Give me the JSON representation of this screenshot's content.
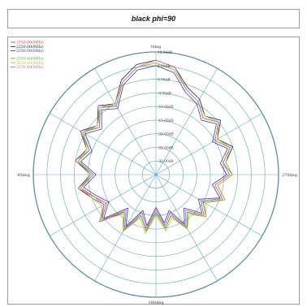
{
  "window": {
    "title": "black phi=90"
  },
  "chart_data": {
    "type": "polar-line",
    "title": "black phi=90",
    "angle_labels": {
      "top": "0deg",
      "left": "90deg",
      "right": "270deg",
      "bottom": "180deg"
    },
    "radial_ticks": [
      "10.00dB",
      "5.00dB",
      "0.00dB",
      "-5.00dB",
      "-10.00dB",
      "-15.00dB",
      "-20.00dB",
      "-25.00dB",
      "-30.00dB"
    ],
    "rlim": [
      -35,
      10
    ],
    "grid": true,
    "legend_position": "top-left",
    "angles_deg": [
      0,
      10,
      20,
      30,
      40,
      50,
      60,
      70,
      80,
      90,
      100,
      110,
      120,
      130,
      140,
      150,
      160,
      170,
      180,
      190,
      200,
      210,
      220,
      230,
      240,
      250,
      260,
      270,
      280,
      290,
      300,
      310,
      320,
      330,
      340,
      350
    ],
    "series": [
      {
        "name": "2150.00(MHz)",
        "color": "#e04040",
        "values": [
          6,
          5,
          1,
          -6,
          -3,
          -8,
          -4,
          -9,
          -6,
          -12,
          -7,
          -11,
          -14,
          -9,
          -18,
          -12,
          -20,
          -15,
          -22,
          -16,
          -20,
          -13,
          -18,
          -12,
          -16,
          -9,
          -13,
          -8,
          -10,
          -6,
          -10,
          -5,
          -8,
          -4,
          -2,
          4
        ]
      },
      {
        "name": "2250.00(MHz)",
        "color": "#222222",
        "values": [
          7,
          6,
          2,
          -5,
          -2,
          -7,
          -3,
          -8,
          -5,
          -11,
          -6,
          -10,
          -13,
          -8,
          -17,
          -11,
          -19,
          -14,
          -21,
          -15,
          -19,
          -12,
          -17,
          -11,
          -15,
          -8,
          -12,
          -7,
          -9,
          -5,
          -9,
          -4,
          -7,
          -3,
          -1,
          5
        ]
      },
      {
        "name": "2350.00(MHz)",
        "color": "#3a3aa8",
        "values": [
          5,
          4,
          0,
          -7,
          -4,
          -9,
          -5,
          -10,
          -7,
          -13,
          -8,
          -12,
          -15,
          -10,
          -19,
          -13,
          -21,
          -16,
          -23,
          -17,
          -21,
          -14,
          -19,
          -13,
          -17,
          -10,
          -14,
          -9,
          -11,
          -7,
          -11,
          -6,
          -9,
          -5,
          -3,
          3
        ]
      },
      {
        "name": "2550.00(MHz)",
        "color": "#50b050",
        "values": [
          6,
          5,
          1,
          -6,
          -3,
          -8,
          -4,
          -9,
          -6,
          -12,
          -7,
          -10,
          -13,
          -9,
          -17,
          -11,
          -19,
          -14,
          -21,
          -15,
          -19,
          -12,
          -17,
          -11,
          -15,
          -8,
          -12,
          -7,
          -10,
          -6,
          -9,
          -5,
          -8,
          -4,
          -2,
          4
        ]
      },
      {
        "name": "2650.00(MHz)",
        "color": "#c8c020",
        "values": [
          6,
          5,
          1,
          -5,
          -3,
          -7,
          -4,
          -8,
          -6,
          -11,
          -7,
          -10,
          -12,
          -9,
          -16,
          -11,
          -18,
          -13,
          -20,
          -14,
          -18,
          -12,
          -16,
          -11,
          -14,
          -8,
          -12,
          -7,
          -9,
          -6,
          -9,
          -5,
          -7,
          -4,
          -2,
          4
        ]
      },
      {
        "name": "2750.00(MHz)",
        "color": "#c070c0",
        "values": [
          7,
          5,
          1,
          -6,
          -2,
          -8,
          -3,
          -9,
          -5,
          -12,
          -6,
          -11,
          -13,
          -8,
          -18,
          -12,
          -20,
          -15,
          -22,
          -16,
          -20,
          -13,
          -18,
          -12,
          -16,
          -9,
          -13,
          -8,
          -10,
          -6,
          -10,
          -5,
          -8,
          -4,
          -2,
          5
        ]
      }
    ]
  }
}
